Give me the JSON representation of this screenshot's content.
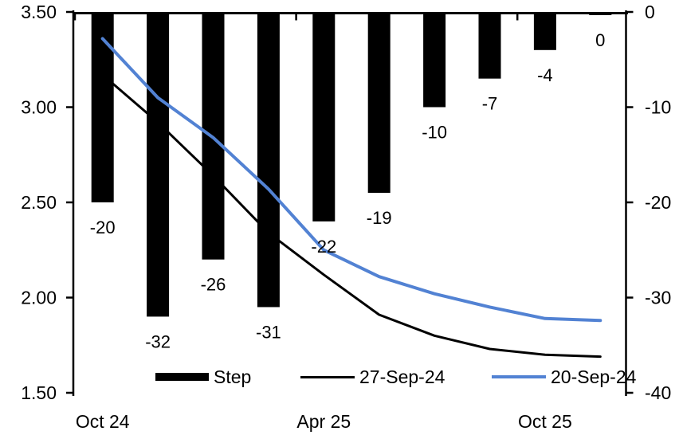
{
  "chart_data": {
    "type": "combo-bar-line",
    "title": "",
    "n_categories": 10,
    "bar_series": {
      "name": "Step",
      "axis": "right",
      "color": "#000000",
      "values": [
        -20,
        -32,
        -26,
        -31,
        -22,
        -19,
        -10,
        -7,
        -4,
        0
      ],
      "labels": [
        "-20",
        "-32",
        "-26",
        "-31",
        "-22",
        "-19",
        "-10",
        "-7",
        "-4",
        "0"
      ]
    },
    "line_series": [
      {
        "name": "27-Sep-24",
        "axis": "left",
        "color": "#000000",
        "values": [
          3.17,
          2.92,
          2.64,
          2.34,
          2.12,
          1.91,
          1.8,
          1.73,
          1.7,
          1.69
        ]
      },
      {
        "name": "20-Sep-24",
        "axis": "left",
        "color": "#5282D3",
        "values": [
          3.36,
          3.05,
          2.84,
          2.57,
          2.25,
          2.11,
          2.02,
          1.95,
          1.89,
          1.88
        ]
      }
    ],
    "left_axis": {
      "min": 1.5,
      "max": 3.5,
      "ticks": [
        "3.50",
        "3.00",
        "2.50",
        "2.00",
        "1.50"
      ]
    },
    "right_axis": {
      "min": -40,
      "max": 0,
      "ticks": [
        "0",
        "-10",
        "-20",
        "-30",
        "-40"
      ]
    },
    "x_axis": {
      "labels": [
        {
          "text": "Oct 24",
          "index": 0
        },
        {
          "text": "Apr 25",
          "index": 4
        },
        {
          "text": "Oct 25",
          "index": 8
        }
      ]
    },
    "legend": [
      {
        "label": "Step",
        "type": "bar",
        "color": "#000000"
      },
      {
        "label": "27-Sep-24",
        "type": "line",
        "color": "#000000"
      },
      {
        "label": "20-Sep-24",
        "type": "line",
        "color": "#5282D3"
      }
    ]
  }
}
